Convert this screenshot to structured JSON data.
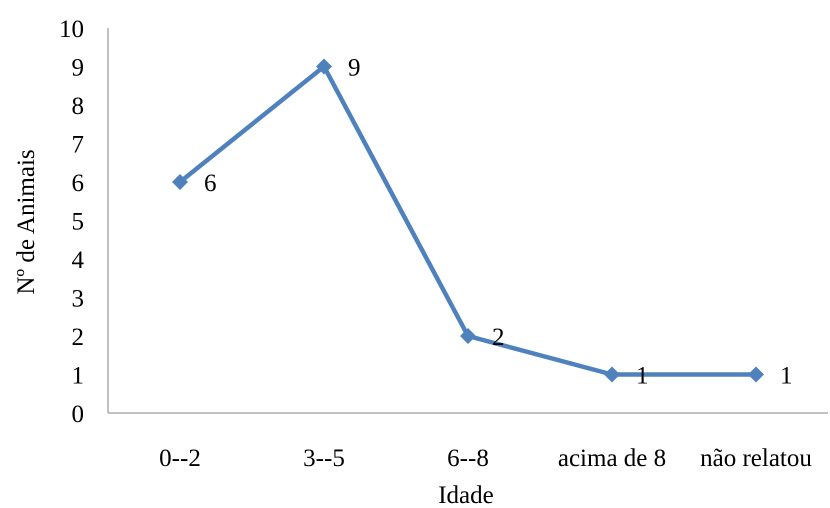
{
  "chart_data": {
    "type": "line",
    "categories": [
      "0--2",
      "3--5",
      "6--8",
      "acima de 8",
      "não relatou"
    ],
    "series": [
      {
        "values": [
          6,
          9,
          2,
          1,
          1
        ],
        "color": "#4F81BD",
        "marker": "diamond",
        "data_labels": true
      }
    ],
    "xlabel": "Idade",
    "ylabel": "Nº de Animais",
    "ylim": [
      0,
      10
    ],
    "yticks": [
      0,
      1,
      2,
      3,
      4,
      5,
      6,
      7,
      8,
      9,
      10
    ],
    "grid": false,
    "axis_color": "#868686"
  }
}
